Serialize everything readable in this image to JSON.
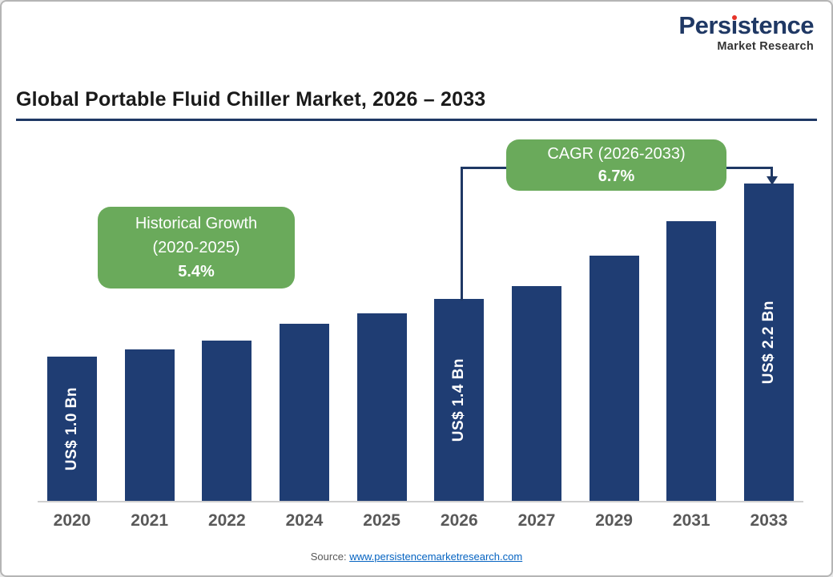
{
  "brand": {
    "name": "Persistence Market Research",
    "logo_main_pre": "Pers",
    "logo_main_i": "ı",
    "logo_main_post": "stence",
    "logo_sub": "Market Research",
    "navy": "#1f3864",
    "red": "#e63329"
  },
  "header": {
    "title": "Global Portable Fluid Chiller Market, 2026 – 2033"
  },
  "annotations": {
    "historical": {
      "line1": "Historical Growth",
      "line2": "(2020-2025)",
      "line3": "5.4%"
    },
    "cagr": {
      "line1": "CAGR (2026-2033)",
      "line2": "6.7%"
    }
  },
  "footer": {
    "source_label": "Source: ",
    "source_link": "www.persistencemarketresearch.com"
  },
  "colors": {
    "bar": "#1f3d73",
    "green_box": "#6aaa5b",
    "navy_line": "#1f3864",
    "link": "#0563c1",
    "axis_label": "#595959"
  },
  "chart_data": {
    "type": "bar",
    "title": "Global Portable Fluid Chiller Market, 2026 – 2033",
    "categories": [
      "2020",
      "2021",
      "2022",
      "2024",
      "2025",
      "2026",
      "2027",
      "2029",
      "2031",
      "2033"
    ],
    "values": [
      1.0,
      1.05,
      1.11,
      1.23,
      1.3,
      1.4,
      1.49,
      1.7,
      1.94,
      2.2
    ],
    "unit": "US$ Bn",
    "bar_labels": [
      "US$ 1.0 Bn",
      "",
      "",
      "",
      "",
      "US$ 1.4 Bn",
      "",
      "",
      "",
      "US$ 2.2 Bn"
    ],
    "historical_growth_2020_2025": "5.4%",
    "cagr_2026_2033": "6.7%",
    "xlabel": "",
    "ylabel": "",
    "ylim": [
      0,
      2.4
    ],
    "grid": false,
    "legend": false
  }
}
